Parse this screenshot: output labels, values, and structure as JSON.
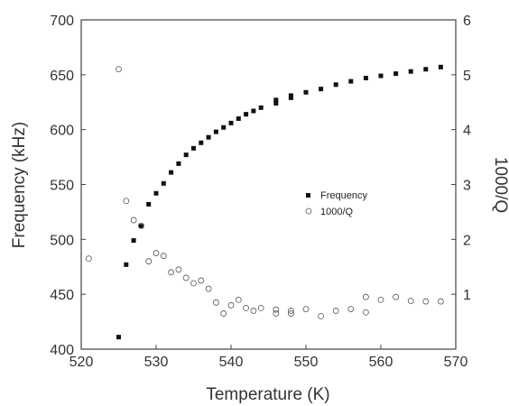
{
  "chart_data": {
    "type": "scatter",
    "xlabel": "Temperature (K)",
    "ylabel": "Frequency (kHz)",
    "y2label": "1000/Q",
    "xlim": [
      520,
      570
    ],
    "ylim": [
      400,
      700
    ],
    "y2lim": [
      0,
      6
    ],
    "x_ticks": [
      "520",
      "530",
      "540",
      "550",
      "560",
      "570"
    ],
    "y_ticks": [
      "400",
      "450",
      "500",
      "550",
      "600",
      "650",
      "700"
    ],
    "y2_ticks": [
      "1",
      "2",
      "3",
      "4",
      "5",
      "6"
    ],
    "legend_position": "center-right",
    "grid": false,
    "series": [
      {
        "name": "Frequency",
        "axis": "left",
        "marker": "filled-square",
        "color": "#111111",
        "points": [
          [
            525,
            411
          ],
          [
            526,
            477
          ],
          [
            527,
            499
          ],
          [
            528,
            512
          ],
          [
            529,
            532
          ],
          [
            530,
            542
          ],
          [
            531,
            551
          ],
          [
            532,
            561
          ],
          [
            533,
            569
          ],
          [
            534,
            577
          ],
          [
            535,
            583
          ],
          [
            536,
            588
          ],
          [
            537,
            593
          ],
          [
            538,
            598
          ],
          [
            539,
            602
          ],
          [
            540,
            606
          ],
          [
            541,
            610
          ],
          [
            542,
            614
          ],
          [
            543,
            617
          ],
          [
            544,
            620
          ],
          [
            546,
            624
          ],
          [
            546,
            627
          ],
          [
            548,
            629
          ],
          [
            548,
            631
          ],
          [
            550,
            634
          ],
          [
            552,
            637
          ],
          [
            554,
            641
          ],
          [
            556,
            644
          ],
          [
            558,
            647
          ],
          [
            560,
            649
          ],
          [
            562,
            651
          ],
          [
            564,
            653
          ],
          [
            566,
            655
          ],
          [
            568,
            657
          ]
        ]
      },
      {
        "name": "1000/Q",
        "axis": "right",
        "marker": "open-circle",
        "color": "#555555",
        "points": [
          [
            521,
            1.65
          ],
          [
            525,
            5.1
          ],
          [
            526,
            2.7
          ],
          [
            527,
            2.35
          ],
          [
            528,
            2.25
          ],
          [
            529,
            1.6
          ],
          [
            530,
            1.75
          ],
          [
            531,
            1.7
          ],
          [
            532,
            1.4
          ],
          [
            533,
            1.45
          ],
          [
            534,
            1.3
          ],
          [
            535,
            1.2
          ],
          [
            536,
            1.25
          ],
          [
            537,
            1.1
          ],
          [
            538,
            0.85
          ],
          [
            539,
            0.65
          ],
          [
            540,
            0.8
          ],
          [
            541,
            0.9
          ],
          [
            542,
            0.75
          ],
          [
            543,
            0.7
          ],
          [
            544,
            0.75
          ],
          [
            546,
            0.72
          ],
          [
            546,
            0.65
          ],
          [
            548,
            0.7
          ],
          [
            548,
            0.65
          ],
          [
            550,
            0.73
          ],
          [
            552,
            0.6
          ],
          [
            554,
            0.7
          ],
          [
            556,
            0.73
          ],
          [
            558,
            0.67
          ],
          [
            558,
            0.95
          ],
          [
            560,
            0.9
          ],
          [
            562,
            0.95
          ],
          [
            564,
            0.88
          ],
          [
            566,
            0.87
          ],
          [
            568,
            0.87
          ]
        ]
      }
    ]
  }
}
